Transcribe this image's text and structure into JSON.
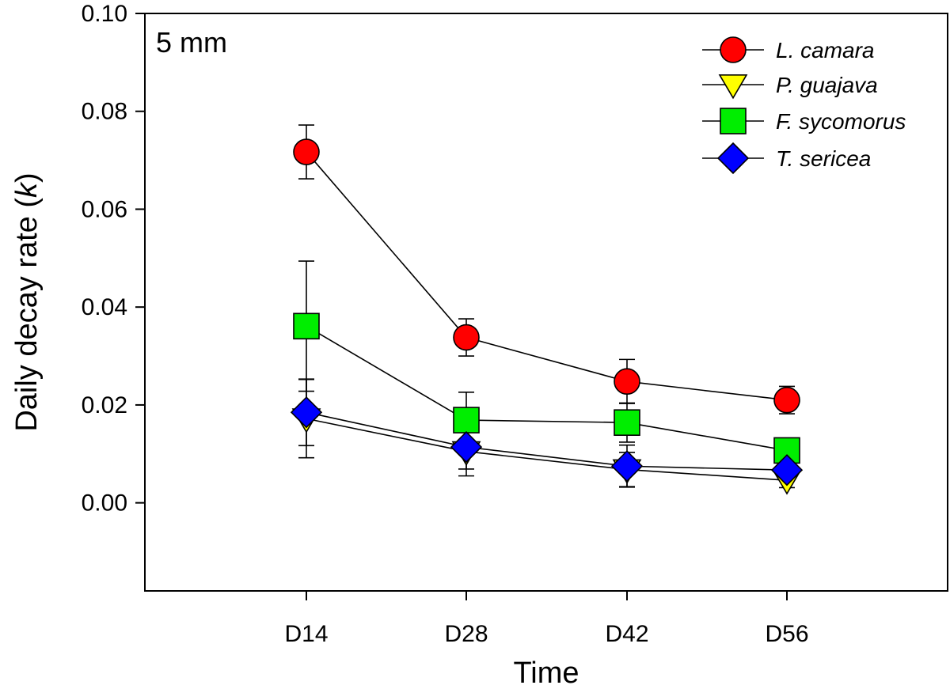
{
  "chart_data": {
    "type": "line",
    "panel_label": "5 mm",
    "xlabel": "Time",
    "ylabel_main": "Daily decay rate (",
    "ylabel_italic": "k",
    "ylabel_end": ")",
    "categories": [
      "D14",
      "D28",
      "D42",
      "D56"
    ],
    "ylim": [
      -0.018,
      0.1
    ],
    "yticks": [
      "0.00",
      "0.02",
      "0.04",
      "0.06",
      "0.08",
      "0.10"
    ],
    "ytick_values": [
      0.0,
      0.02,
      0.04,
      0.06,
      0.08,
      0.1
    ],
    "legend_position": "top-right",
    "series": [
      {
        "name": "L. camara",
        "marker": "circle",
        "color": "#ff0000",
        "values": [
          0.0717,
          0.0338,
          0.0248,
          0.021
        ],
        "errors": [
          0.0055,
          0.0038,
          0.0045,
          0.0028
        ]
      },
      {
        "name": "P. guajava",
        "marker": "triangle-down",
        "color": "#ffff00",
        "values": [
          0.0172,
          0.0105,
          0.0068,
          0.0046
        ],
        "errors": [
          0.008,
          0.005,
          0.0035,
          0.0015
        ]
      },
      {
        "name": "F. sycomorus",
        "marker": "square",
        "color": "#00ee00",
        "values": [
          0.0361,
          0.0169,
          0.0164,
          0.0107
        ],
        "errors": [
          0.0133,
          0.0057,
          0.004,
          0.002
        ]
      },
      {
        "name": "T. sericea",
        "marker": "diamond",
        "color": "#0000ff",
        "values": [
          0.0185,
          0.0114,
          0.0075,
          0.0067
        ],
        "errors": [
          0.0068,
          0.0045,
          0.0043,
          0.002
        ]
      }
    ]
  }
}
